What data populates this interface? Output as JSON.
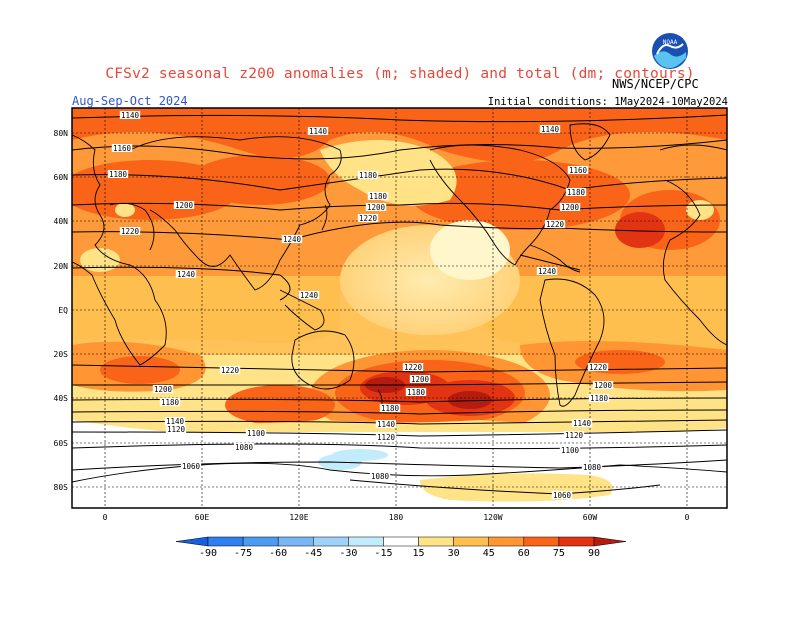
{
  "header": {
    "title": "CFSv2 seasonal z200 anomalies (m; shaded) and total (dm; contours)",
    "season": "Aug-Sep-Oct 2024",
    "initial_conditions": "Initial conditions: 1May2024-10May2024",
    "agency": "NWS/NCEP/CPC",
    "logo_text": "NOAA"
  },
  "axes": {
    "lat_labels": [
      "80N",
      "60N",
      "40N",
      "20N",
      "EQ",
      "20S",
      "40S",
      "60S",
      "80S"
    ],
    "lon_labels": [
      "0",
      "60E",
      "120E",
      "180",
      "120W",
      "60W",
      "0"
    ]
  },
  "contour_labels": [
    "1140",
    "1160",
    "1180",
    "1200",
    "1220",
    "1240",
    "1120",
    "1100",
    "1080",
    "1060"
  ],
  "colorbar": {
    "ticks": [
      "-90",
      "-75",
      "-60",
      "-45",
      "-30",
      "-15",
      "15",
      "30",
      "45",
      "60",
      "75",
      "90"
    ],
    "colors": [
      "#1560e0",
      "#2e80f2",
      "#4c9af2",
      "#78b6f4",
      "#9fd2f8",
      "#c2ecfc",
      "#ffffff",
      "#ffe386",
      "#ffbf4f",
      "#ff9633",
      "#fa6419",
      "#e23412",
      "#b51c10"
    ]
  },
  "colors": {
    "title": "#e8473a",
    "season": "#2f55d4",
    "land": "#000000"
  }
}
